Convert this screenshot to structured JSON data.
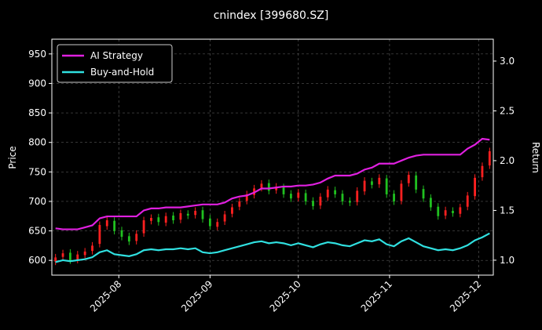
{
  "chart_data": {
    "type": "candlestick",
    "title": "cnindex [399680.SZ]",
    "y_label": "Price",
    "y2_label": "Return",
    "categories": [
      null,
      null,
      null,
      null,
      null,
      null,
      null,
      null,
      null,
      null,
      null,
      null,
      null,
      null,
      null,
      null,
      null,
      null,
      null,
      null,
      null,
      null,
      null,
      null,
      null,
      null,
      null,
      null,
      null,
      null,
      null,
      null,
      null,
      null,
      null,
      null,
      null,
      null,
      null,
      null,
      null,
      null,
      null,
      null,
      null,
      null,
      null,
      null,
      null,
      null,
      null,
      null,
      null,
      null,
      null,
      null,
      null,
      null,
      null,
      null
    ],
    "xlim": [
      -0.5,
      59.5
    ],
    "xticks": [
      {
        "value": 8.6,
        "label": "2025-08"
      },
      {
        "value": 21,
        "label": "2025-09"
      },
      {
        "value": 33,
        "label": "2025-10"
      },
      {
        "value": 45.4,
        "label": "2025-11"
      },
      {
        "value": 57.5,
        "label": "2025-12"
      }
    ],
    "ylim": [
      575,
      975
    ],
    "yticks": [
      600,
      650,
      700,
      750,
      800,
      850,
      900,
      950
    ],
    "y2lim": [
      0.85,
      3.22
    ],
    "y2ticks": [
      {
        "value": 1,
        "label": "1.0"
      },
      1.5,
      {
        "value": 2,
        "label": "2.0"
      },
      2.5,
      {
        "value": 3,
        "label": "3.0"
      }
    ],
    "grid": true,
    "legend": "upper left",
    "up_color": "#ff2020",
    "down_color": "#20c020",
    "open": [
      598,
      606,
      613,
      601,
      609,
      616,
      628,
      658,
      667,
      651,
      641,
      633,
      646,
      667,
      673,
      664,
      676,
      669,
      679,
      677,
      685,
      671,
      657,
      666,
      679,
      691,
      701,
      711,
      723,
      731,
      719,
      724,
      713,
      706,
      714,
      701,
      693,
      707,
      719,
      713,
      701,
      699,
      717,
      734,
      729,
      739,
      713,
      701,
      731,
      744,
      721,
      706,
      691,
      676,
      684,
      679,
      691,
      709,
      741,
      761
    ],
    "high": [
      611,
      618,
      619,
      616,
      621,
      631,
      666,
      674,
      673,
      657,
      647,
      651,
      674,
      678,
      679,
      681,
      682,
      686,
      685,
      690,
      691,
      677,
      671,
      684,
      696,
      706,
      718,
      728,
      736,
      737,
      731,
      730,
      719,
      721,
      720,
      707,
      714,
      726,
      725,
      719,
      707,
      724,
      741,
      740,
      746,
      745,
      719,
      736,
      751,
      750,
      727,
      712,
      697,
      691,
      690,
      696,
      716,
      746,
      766,
      791
    ],
    "low": [
      592,
      600,
      594,
      595,
      603,
      610,
      622,
      652,
      644,
      634,
      626,
      627,
      640,
      661,
      659,
      658,
      662,
      663,
      670,
      671,
      664,
      652,
      651,
      660,
      673,
      685,
      695,
      705,
      717,
      712,
      713,
      706,
      699,
      700,
      694,
      686,
      687,
      701,
      706,
      694,
      692,
      693,
      711,
      722,
      723,
      706,
      694,
      695,
      725,
      714,
      699,
      684,
      669,
      670,
      674,
      673,
      685,
      703,
      735,
      755
    ],
    "close": [
      605,
      612,
      600,
      610,
      615,
      625,
      660,
      668,
      650,
      640,
      632,
      645,
      668,
      672,
      665,
      675,
      668,
      680,
      676,
      684,
      670,
      658,
      665,
      678,
      690,
      700,
      712,
      722,
      730,
      718,
      725,
      712,
      705,
      715,
      700,
      692,
      708,
      720,
      712,
      700,
      698,
      718,
      735,
      728,
      740,
      712,
      700,
      730,
      745,
      720,
      705,
      690,
      675,
      685,
      680,
      690,
      710,
      740,
      760,
      785
    ],
    "series": [
      {
        "name": "AI Strategy",
        "color": "#e020e0",
        "axis": "y2",
        "values": [
          1.32,
          1.31,
          1.31,
          1.31,
          1.33,
          1.35,
          1.42,
          1.44,
          1.44,
          1.44,
          1.44,
          1.44,
          1.5,
          1.52,
          1.52,
          1.53,
          1.53,
          1.53,
          1.54,
          1.55,
          1.56,
          1.56,
          1.56,
          1.58,
          1.62,
          1.64,
          1.65,
          1.68,
          1.72,
          1.72,
          1.73,
          1.74,
          1.74,
          1.75,
          1.75,
          1.76,
          1.78,
          1.82,
          1.85,
          1.85,
          1.85,
          1.87,
          1.91,
          1.93,
          1.97,
          1.97,
          1.97,
          2.0,
          2.03,
          2.05,
          2.06,
          2.06,
          2.06,
          2.06,
          2.06,
          2.06,
          2.12,
          2.16,
          2.22,
          2.21
        ]
      },
      {
        "name": "Buy-and-Hold",
        "color": "#30e0e0",
        "axis": "y2",
        "values": [
          0.98,
          1.0,
          0.99,
          1.0,
          1.01,
          1.03,
          1.08,
          1.1,
          1.06,
          1.05,
          1.04,
          1.06,
          1.1,
          1.11,
          1.1,
          1.11,
          1.11,
          1.12,
          1.11,
          1.12,
          1.08,
          1.07,
          1.08,
          1.1,
          1.12,
          1.14,
          1.16,
          1.18,
          1.19,
          1.17,
          1.18,
          1.17,
          1.15,
          1.17,
          1.15,
          1.13,
          1.16,
          1.18,
          1.17,
          1.15,
          1.14,
          1.17,
          1.2,
          1.19,
          1.21,
          1.16,
          1.14,
          1.19,
          1.22,
          1.18,
          1.14,
          1.12,
          1.1,
          1.11,
          1.1,
          1.12,
          1.15,
          1.2,
          1.23,
          1.27
        ]
      }
    ]
  }
}
